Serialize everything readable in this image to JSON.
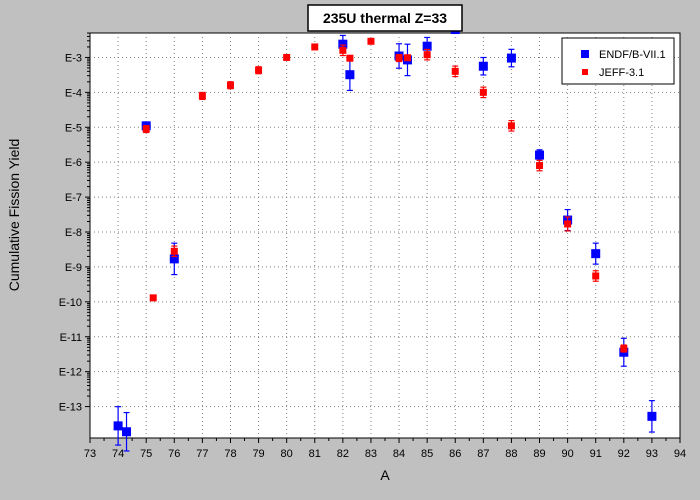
{
  "chart_data": {
    "type": "scatter",
    "title": "235U thermal Z=33",
    "xlabel": "A",
    "ylabel": "Cumulative Fission Yield",
    "x_ticks": [
      73,
      74,
      75,
      76,
      77,
      78,
      79,
      80,
      81,
      82,
      83,
      84,
      85,
      86,
      87,
      88,
      89,
      90,
      91,
      92,
      93,
      94
    ],
    "xlim": [
      73,
      94
    ],
    "y_scale": "log",
    "y_exponent_range": [
      -13.9,
      -2.3
    ],
    "y_tick_exponents": [
      -3,
      -4,
      -5,
      -6,
      -7,
      -8,
      -9,
      -10,
      -11,
      -12,
      -13
    ],
    "y_tick_labels": [
      "E-3",
      "E-4",
      "E-5",
      "E-6",
      "E-7",
      "E-8",
      "E-9",
      "E-10",
      "E-11",
      "E-12",
      "E-13"
    ],
    "grid": true,
    "legend_position": "top-right",
    "series": [
      {
        "name": "ENDF/B-VII.1",
        "color": "#0000ff",
        "marker": "square",
        "points": [
          {
            "x": 74.0,
            "y": 2.8e-14,
            "err": 0.55
          },
          {
            "x": 74.3,
            "y": 1.9e-14,
            "err": 0.55
          },
          {
            "x": 75.0,
            "y": 1.1e-05,
            "err": 0.1
          },
          {
            "x": 76.0,
            "y": 1.7e-09,
            "err": 0.45
          },
          {
            "x": 82.0,
            "y": 0.0024,
            "err": 0.25
          },
          {
            "x": 82.25,
            "y": 0.00032,
            "err": 0.45
          },
          {
            "x": 84.0,
            "y": 0.0011,
            "err": 0.35
          },
          {
            "x": 84.3,
            "y": 0.00085,
            "err": 0.45
          },
          {
            "x": 85.0,
            "y": 0.0021,
            "err": 0.25
          },
          {
            "x": 86.0,
            "y": 0.0063,
            "err": 0.1
          },
          {
            "x": 87.0,
            "y": 0.00056,
            "err": 0.25
          },
          {
            "x": 88.0,
            "y": 0.00096,
            "err": 0.25
          },
          {
            "x": 89.0,
            "y": 1.6e-06,
            "err": 0.15
          },
          {
            "x": 90.0,
            "y": 2.2e-08,
            "err": 0.3
          },
          {
            "x": 91.0,
            "y": 2.4e-09,
            "err": 0.3
          },
          {
            "x": 92.0,
            "y": 3.6e-12,
            "err": 0.4
          },
          {
            "x": 93.0,
            "y": 5.25e-14,
            "err": 0.45
          }
        ]
      },
      {
        "name": "JEFF-3.1",
        "color": "#ff0000",
        "marker": "square",
        "points": [
          {
            "x": 75.0,
            "y": 8.9e-06,
            "err": 0.1
          },
          {
            "x": 75.25,
            "y": 1.3e-10,
            "err": 0
          },
          {
            "x": 76.0,
            "y": 2.8e-09,
            "err": 0.15
          },
          {
            "x": 77.0,
            "y": 7.9e-05,
            "err": 0.1
          },
          {
            "x": 78.0,
            "y": 0.00016,
            "err": 0.1
          },
          {
            "x": 79.0,
            "y": 0.00043,
            "err": 0.1
          },
          {
            "x": 80.0,
            "y": 0.001,
            "err": 0.05
          },
          {
            "x": 81.0,
            "y": 0.002,
            "err": 0.05
          },
          {
            "x": 82.0,
            "y": 0.0016,
            "err": 0.15
          },
          {
            "x": 82.25,
            "y": 0.00095,
            "err": 0.05
          },
          {
            "x": 83.0,
            "y": 0.0029,
            "err": 0.05
          },
          {
            "x": 84.0,
            "y": 0.00096,
            "err": 0.1
          },
          {
            "x": 84.3,
            "y": 0.00098,
            "err": 0.05
          },
          {
            "x": 85.0,
            "y": 0.0012,
            "err": 0.15
          },
          {
            "x": 86.0,
            "y": 0.0004,
            "err": 0.15
          },
          {
            "x": 87.0,
            "y": 0.0001,
            "err": 0.15
          },
          {
            "x": 88.0,
            "y": 1.1e-05,
            "err": 0.15
          },
          {
            "x": 89.0,
            "y": 8e-07,
            "err": 0.15
          },
          {
            "x": 90.0,
            "y": 1.7e-08,
            "err": 0.2
          },
          {
            "x": 91.0,
            "y": 5.5e-10,
            "err": 0.15
          },
          {
            "x": 92.0,
            "y": 4.6e-12,
            "err": 0.1
          }
        ]
      }
    ]
  }
}
